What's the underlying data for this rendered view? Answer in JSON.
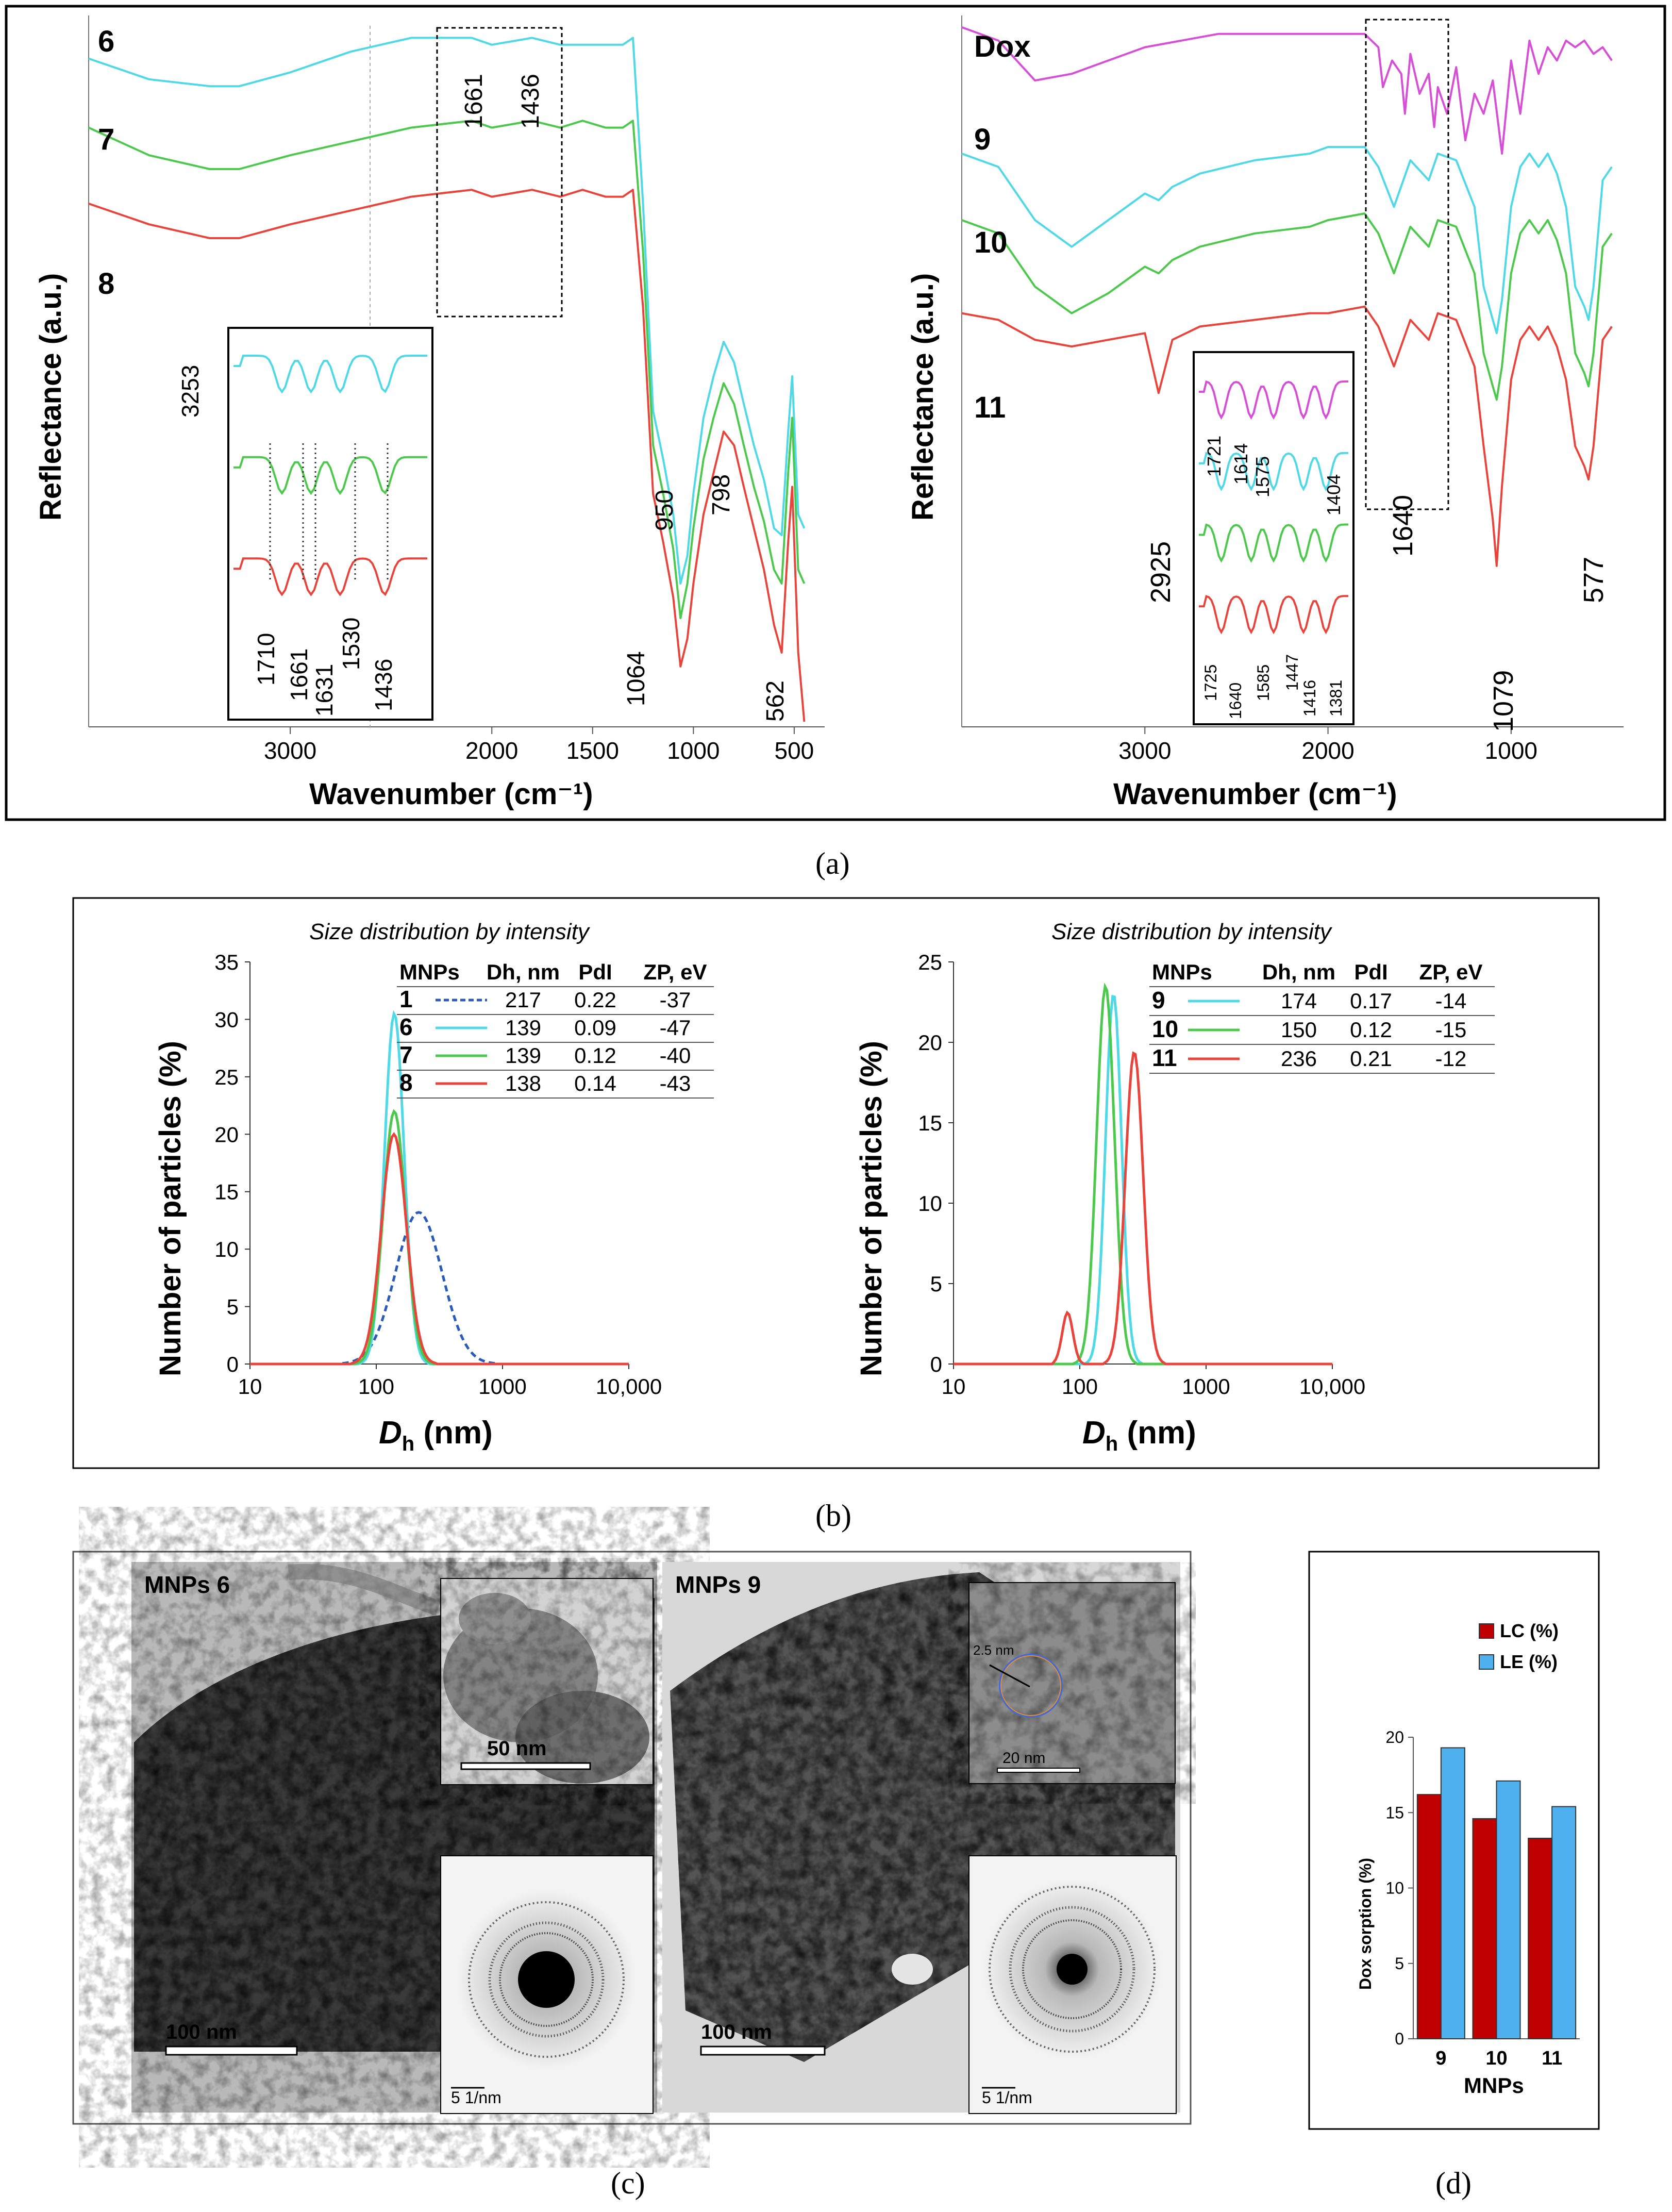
{
  "panel_labels": {
    "a": "(a)",
    "b": "(b)",
    "c": "(c)",
    "d": "(d)"
  },
  "colors": {
    "cyan": "#4fd8e6",
    "green": "#4cc94c",
    "red": "#e8443c",
    "magenta": "#d64fd6",
    "blue_dash": "#2a5bb8",
    "lc": "#c00000",
    "le": "#4fb0f0"
  },
  "chart_data": [
    {
      "id": "ftir-left",
      "type": "line",
      "xlabel": "Wavenumber (cm⁻¹)",
      "ylabel": "Reflectance (a.u.)",
      "xlim": [
        4000,
        400
      ],
      "x_ticks": [
        "3000",
        "2000",
        "1500",
        "1000",
        "500"
      ],
      "series": [
        {
          "name": "6",
          "color": "cyan",
          "label": "6",
          "x": [
            4000,
            3700,
            3400,
            3253,
            3000,
            2700,
            2400,
            2100,
            2000,
            1800,
            1661,
            1550,
            1436,
            1350,
            1300,
            1250,
            1200,
            1150,
            1100,
            1064,
            1030,
            1000,
            950,
            900,
            850,
            798,
            750,
            700,
            650,
            600,
            562,
            530,
            510,
            480,
            450
          ],
          "y": [
            96,
            93,
            92,
            92,
            94,
            97,
            99,
            99,
            98,
            99,
            98,
            98,
            98,
            98,
            99,
            75,
            45,
            38,
            30,
            20,
            24,
            33,
            44,
            50,
            55,
            52,
            46,
            40,
            35,
            28,
            27,
            42,
            50,
            30,
            28
          ]
        },
        {
          "name": "7",
          "color": "green",
          "label": "7",
          "x": [
            4000,
            3700,
            3400,
            3253,
            3000,
            2700,
            2400,
            2100,
            2000,
            1800,
            1661,
            1550,
            1436,
            1350,
            1300,
            1250,
            1200,
            1150,
            1100,
            1064,
            1030,
            1000,
            950,
            900,
            850,
            798,
            750,
            700,
            650,
            600,
            562,
            530,
            510,
            480,
            450
          ],
          "y": [
            86,
            82,
            80,
            80,
            82,
            84,
            86,
            87,
            86,
            87,
            86,
            87,
            86,
            86,
            87,
            68,
            40,
            33,
            25,
            15,
            20,
            28,
            38,
            44,
            49,
            46,
            40,
            34,
            29,
            22,
            20,
            36,
            44,
            22,
            20
          ]
        },
        {
          "name": "8",
          "color": "red",
          "label": "8",
          "x": [
            4000,
            3700,
            3400,
            3253,
            3000,
            2700,
            2400,
            2100,
            2000,
            1800,
            1661,
            1550,
            1436,
            1350,
            1300,
            1250,
            1200,
            1150,
            1100,
            1064,
            1030,
            1000,
            950,
            900,
            850,
            798,
            750,
            700,
            650,
            600,
            562,
            530,
            510,
            480,
            450
          ],
          "y": [
            75,
            72,
            70,
            70,
            72,
            74,
            76,
            77,
            76,
            77,
            76,
            77,
            76,
            76,
            77,
            60,
            33,
            26,
            18,
            8,
            12,
            20,
            30,
            36,
            42,
            40,
            34,
            28,
            22,
            14,
            10,
            26,
            34,
            10,
            0
          ]
        }
      ],
      "annotations": [
        "3253",
        "1661",
        "1436",
        "1064",
        "950",
        "798",
        "562"
      ],
      "inset": {
        "labels": [
          "1710",
          "1661",
          "1631",
          "1530",
          "1436"
        ]
      }
    },
    {
      "id": "ftir-right",
      "type": "line",
      "xlabel": "Wavenumber (cm⁻¹)",
      "ylabel": "Reflectance (a.u.)",
      "xlim": [
        4000,
        400
      ],
      "x_ticks": [
        "3000",
        "2000",
        "1000"
      ],
      "series": [
        {
          "name": "Dox",
          "color": "magenta",
          "label": "Dox",
          "x": [
            4000,
            3800,
            3600,
            3400,
            3200,
            3000,
            2800,
            2600,
            2400,
            2200,
            2000,
            1800,
            1725,
            1700,
            1650,
            1600,
            1580,
            1550,
            1500,
            1450,
            1420,
            1400,
            1350,
            1300,
            1250,
            1200,
            1150,
            1100,
            1050,
            1000,
            950,
            900,
            850,
            800,
            750,
            700,
            650,
            600,
            550,
            500,
            450
          ],
          "y": [
            99,
            97,
            91,
            92,
            94,
            96,
            97,
            98,
            98,
            98,
            98,
            98,
            96,
            90,
            94,
            92,
            86,
            95,
            89,
            92,
            84,
            90,
            86,
            93,
            82,
            89,
            86,
            91,
            80,
            94,
            86,
            97,
            92,
            96,
            94,
            97,
            96,
            97,
            95,
            96,
            94
          ]
        },
        {
          "name": "9",
          "color": "cyan",
          "label": "9",
          "x": [
            4000,
            3800,
            3600,
            3400,
            3200,
            3000,
            2925,
            2850,
            2700,
            2400,
            2100,
            2000,
            1800,
            1725,
            1640,
            1550,
            1450,
            1400,
            1300,
            1200,
            1150,
            1100,
            1079,
            1050,
            1000,
            950,
            900,
            850,
            800,
            750,
            700,
            650,
            600,
            577,
            550,
            500,
            450
          ],
          "y": [
            80,
            78,
            70,
            66,
            70,
            74,
            73,
            75,
            77,
            79,
            80,
            81,
            81,
            78,
            72,
            79,
            76,
            80,
            79,
            72,
            60,
            55,
            53,
            58,
            72,
            78,
            80,
            78,
            80,
            77,
            72,
            60,
            57,
            55,
            60,
            76,
            78
          ]
        },
        {
          "name": "10",
          "color": "green",
          "label": "10",
          "x": [
            4000,
            3800,
            3600,
            3400,
            3200,
            3000,
            2925,
            2850,
            2700,
            2400,
            2100,
            2000,
            1800,
            1725,
            1640,
            1550,
            1450,
            1400,
            1300,
            1200,
            1150,
            1100,
            1079,
            1050,
            1000,
            950,
            900,
            850,
            800,
            750,
            700,
            650,
            600,
            577,
            550,
            500,
            450
          ],
          "y": [
            70,
            68,
            60,
            56,
            59,
            63,
            62,
            64,
            66,
            68,
            69,
            70,
            71,
            68,
            62,
            69,
            66,
            70,
            69,
            62,
            50,
            45,
            43,
            48,
            62,
            68,
            70,
            68,
            70,
            67,
            62,
            50,
            47,
            45,
            50,
            66,
            68
          ]
        },
        {
          "name": "11",
          "color": "red",
          "label": "11",
          "x": [
            4000,
            3800,
            3600,
            3400,
            3200,
            3000,
            2925,
            2850,
            2700,
            2400,
            2100,
            2000,
            1800,
            1725,
            1640,
            1550,
            1450,
            1400,
            1300,
            1200,
            1150,
            1100,
            1079,
            1050,
            1000,
            950,
            900,
            850,
            800,
            750,
            700,
            650,
            600,
            577,
            550,
            500,
            450
          ],
          "y": [
            56,
            55,
            52,
            51,
            52,
            53,
            44,
            52,
            54,
            55,
            56,
            56,
            57,
            54,
            48,
            55,
            52,
            56,
            55,
            48,
            36,
            25,
            18,
            30,
            46,
            52,
            54,
            52,
            54,
            51,
            46,
            36,
            33,
            31,
            36,
            52,
            54
          ]
        }
      ],
      "annotations": [
        "2925",
        "1640",
        "1079",
        "577"
      ],
      "inset": {
        "labels_top": [
          "1721",
          "1614",
          "1575",
          "1404"
        ],
        "labels_bottom": [
          "1725",
          "1640",
          "1585",
          "1447",
          "1416",
          "1381"
        ]
      }
    },
    {
      "id": "dls-left",
      "type": "line",
      "title": "Size distribution by intensity",
      "xlabel": "D",
      "xlabel_sub": "h",
      "xlabel_unit": " (nm)",
      "ylabel": "Number of particles (%)",
      "xscale": "log",
      "xlim": [
        10,
        10000
      ],
      "ylim": [
        0,
        35
      ],
      "x_ticks": [
        "10",
        "100",
        "1000",
        "10,000"
      ],
      "y_ticks": [
        "0",
        "5",
        "10",
        "15",
        "20",
        "25",
        "30",
        "35"
      ],
      "series": [
        {
          "name": "1",
          "color": "blue_dash",
          "dashed": true,
          "peak": 217,
          "height": 13.2,
          "width": 0.26
        },
        {
          "name": "6",
          "color": "cyan",
          "peak": 139,
          "height": 30.5,
          "width": 0.11
        },
        {
          "name": "7",
          "color": "green",
          "peak": 139,
          "height": 22,
          "width": 0.125
        },
        {
          "name": "8",
          "color": "red",
          "peak": 138,
          "height": 20,
          "width": 0.14
        }
      ],
      "table": {
        "headers": [
          "MNPs",
          "Dh, nm",
          "PdI",
          "ZP, eV"
        ],
        "rows": [
          {
            "id": "1",
            "color": "blue_dash",
            "dashed": true,
            "dh": "217",
            "pdi": "0.22",
            "zp": "-37"
          },
          {
            "id": "6",
            "color": "cyan",
            "dh": "139",
            "pdi": "0.09",
            "zp": "-47"
          },
          {
            "id": "7",
            "color": "green",
            "dh": "139",
            "pdi": "0.12",
            "zp": "-40"
          },
          {
            "id": "8",
            "color": "red",
            "dh": "138",
            "pdi": "0.14",
            "zp": "-43"
          }
        ]
      }
    },
    {
      "id": "dls-right",
      "type": "line",
      "title": "Size distribution by intensity",
      "xlabel": "D",
      "xlabel_sub": "h",
      "xlabel_unit": " (nm)",
      "ylabel": "Number of particles (%)",
      "xscale": "log",
      "xlim": [
        10,
        10000
      ],
      "ylim": [
        0,
        25
      ],
      "x_ticks": [
        "10",
        "100",
        "1000",
        "10,000"
      ],
      "y_ticks": [
        "0",
        "5",
        "10",
        "15",
        "20",
        "25"
      ],
      "series": [
        {
          "name": "9",
          "color": "cyan",
          "peak": 185,
          "height": 23,
          "width": 0.09
        },
        {
          "name": "10",
          "color": "green",
          "peak": 160,
          "height": 23.5,
          "width": 0.1
        },
        {
          "name": "11",
          "color": "red",
          "peak": 270,
          "height": 19.4,
          "width": 0.1,
          "second_peak": 80,
          "second_height": 3.2,
          "second_width": 0.06
        }
      ],
      "table": {
        "headers": [
          "MNPs",
          "Dh, nm",
          "PdI",
          "ZP, eV"
        ],
        "rows": [
          {
            "id": "9",
            "color": "cyan",
            "dh": "174",
            "pdi": "0.17",
            "zp": "-14"
          },
          {
            "id": "10",
            "color": "green",
            "dh": "150",
            "pdi": "0.12",
            "zp": "-15"
          },
          {
            "id": "11",
            "color": "red",
            "dh": "236",
            "pdi": "0.21",
            "zp": "-12"
          }
        ]
      }
    },
    {
      "id": "dox-sorption",
      "type": "bar",
      "categories": [
        "9",
        "10",
        "11"
      ],
      "series": [
        {
          "name": "LC (%)",
          "color": "lc",
          "values": [
            16.2,
            14.6,
            13.3
          ]
        },
        {
          "name": "LE (%)",
          "color": "le",
          "values": [
            19.3,
            17.1,
            15.4
          ]
        }
      ],
      "xlabel": "MNPs",
      "ylabel": "Dox sorption (%)",
      "ylim": [
        0,
        20
      ],
      "y_ticks": [
        "0",
        "5",
        "10",
        "15",
        "20"
      ]
    }
  ],
  "tem": {
    "left": {
      "title": "MNPs 6",
      "scale_main": "100 nm",
      "scale_inset": "50 nm",
      "scale_saed": "5 1/nm"
    },
    "right": {
      "title": "MNPs 9",
      "scale_main": "100 nm",
      "scale_inset": "20 nm",
      "inset_note": "2.5 nm",
      "scale_saed": "5 1/nm"
    }
  }
}
